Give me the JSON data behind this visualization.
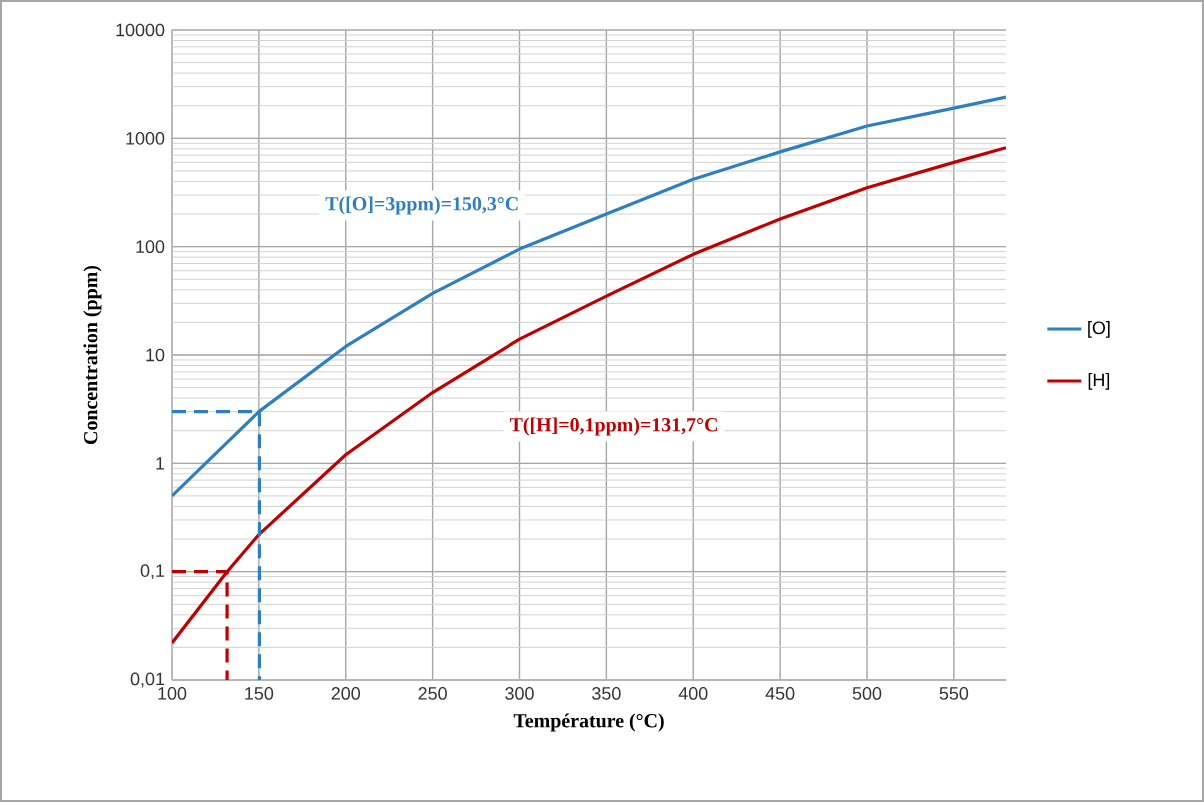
{
  "chart_data": {
    "type": "line",
    "xlabel": "Température (°C)",
    "ylabel": "Concentration (ppm)",
    "log": "y",
    "grid": true,
    "legend": "right",
    "marker": "none",
    "xlim": [
      100,
      580
    ],
    "xticks": [
      100,
      150,
      200,
      250,
      300,
      350,
      400,
      450,
      500,
      550
    ],
    "ylim": [
      0.01,
      10000
    ],
    "yticks": [
      {
        "value": 0.01,
        "label": "0,01"
      },
      {
        "value": 0.1,
        "label": "0,1"
      },
      1,
      10,
      100,
      1000,
      10000
    ],
    "series": [
      {
        "name": "[O]",
        "color": "#2e7fc2",
        "x": [
          100,
          150,
          200,
          250,
          300,
          350,
          400,
          450,
          500,
          550,
          580
        ],
        "values": [
          0.5,
          3,
          12,
          37,
          95,
          200,
          420,
          750,
          1300,
          1900,
          2400
        ]
      },
      {
        "name": "[H]",
        "color": "#c00000",
        "x": [
          100,
          131.7,
          150,
          200,
          250,
          300,
          350,
          400,
          450,
          500,
          550,
          580
        ],
        "values": [
          0.022,
          0.1,
          0.22,
          1.2,
          4.5,
          14,
          35,
          85,
          180,
          350,
          600,
          820
        ]
      },
      {
        "color": "#2e7fc2",
        "line_style": "dashed",
        "x": [
          100,
          150.3,
          150.3
        ],
        "values": [
          3,
          3,
          0.01
        ]
      },
      {
        "color": "#c00000",
        "line_style": "dashed",
        "x": [
          100,
          131.7,
          131.7
        ],
        "values": [
          0.1,
          0.1,
          0.01
        ]
      }
    ],
    "annotations": [
      "T([O]=3ppm)=150,3°C",
      "T([H]=0,1ppm)=131,7°C"
    ]
  }
}
